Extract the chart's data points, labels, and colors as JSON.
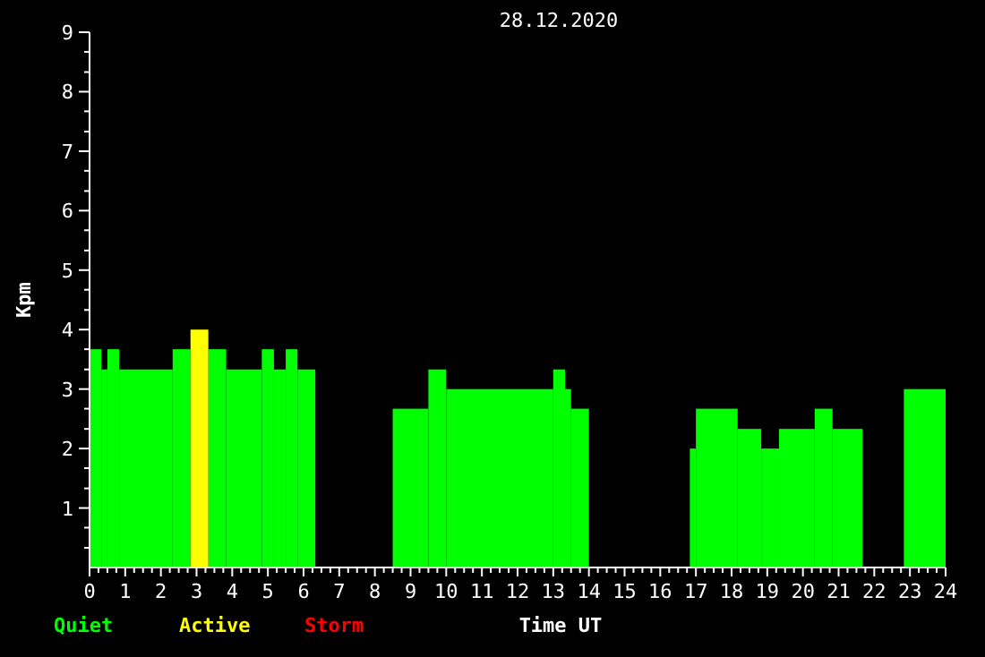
{
  "chart_data": {
    "type": "histogram",
    "title": "28.12.2020",
    "xlabel": "Time UT",
    "ylabel": "Kpm",
    "bins": [
      0,
      0.33,
      0.5,
      0.83,
      2.33,
      2.83,
      3.33,
      3.83,
      4.83,
      5.17,
      5.5,
      5.83,
      6.33,
      8.5,
      9.5,
      10,
      13,
      13.33,
      13.5,
      14,
      16.83,
      17,
      18.17,
      18.83,
      19.33,
      20.33,
      20.83,
      21.67,
      22.83,
      24
    ],
    "series": [
      {
        "name": "Quiet",
        "color": "#00ff00",
        "values": [
          3.67,
          3.33,
          3.67,
          3.33,
          3.67,
          null,
          3.67,
          3.33,
          3.67,
          3.33,
          3.67,
          3.33,
          null,
          2.67,
          3.33,
          3,
          3.33,
          3,
          2.67,
          null,
          2,
          2.67,
          2.33,
          2,
          2.33,
          2.67,
          2.33,
          null,
          3
        ]
      },
      {
        "name": "Active",
        "color": "#ffff00",
        "values": [
          null,
          null,
          null,
          null,
          null,
          4,
          null,
          null,
          null,
          null,
          null,
          null,
          null,
          null,
          null,
          null,
          null,
          null,
          null,
          null,
          null,
          null,
          null,
          null,
          null,
          null,
          null,
          null,
          null
        ]
      }
    ],
    "annotations": [
      "Storm"
    ],
    "xlim": [
      0,
      24
    ],
    "ylim": [
      0,
      9
    ],
    "xticks": [
      0,
      {
        "value": 0.25,
        "label": null
      },
      {
        "value": 0.5,
        "label": null
      },
      {
        "value": 0.75,
        "label": null
      },
      1,
      {
        "value": 1.25,
        "label": null
      },
      {
        "value": 1.5,
        "label": null
      },
      {
        "value": 1.75,
        "label": null
      },
      2,
      {
        "value": 2.25,
        "label": null
      },
      {
        "value": 2.5,
        "label": null
      },
      {
        "value": 2.75,
        "label": null
      },
      3,
      {
        "value": 3.25,
        "label": null
      },
      {
        "value": 3.5,
        "label": null
      },
      {
        "value": 3.75,
        "label": null
      },
      4,
      {
        "value": 4.25,
        "label": null
      },
      {
        "value": 4.5,
        "label": null
      },
      {
        "value": 4.75,
        "label": null
      },
      5,
      {
        "value": 5.25,
        "label": null
      },
      {
        "value": 5.5,
        "label": null
      },
      {
        "value": 5.75,
        "label": null
      },
      6,
      {
        "value": 6.25,
        "label": null
      },
      {
        "value": 6.5,
        "label": null
      },
      {
        "value": 6.75,
        "label": null
      },
      7,
      {
        "value": 7.25,
        "label": null
      },
      {
        "value": 7.5,
        "label": null
      },
      {
        "value": 7.75,
        "label": null
      },
      8,
      {
        "value": 8.25,
        "label": null
      },
      {
        "value": 8.5,
        "label": null
      },
      {
        "value": 8.75,
        "label": null
      },
      9,
      {
        "value": 9.25,
        "label": null
      },
      {
        "value": 9.5,
        "label": null
      },
      {
        "value": 9.75,
        "label": null
      },
      10,
      {
        "value": 10.25,
        "label": null
      },
      {
        "value": 10.5,
        "label": null
      },
      {
        "value": 10.75,
        "label": null
      },
      11,
      {
        "value": 11.25,
        "label": null
      },
      {
        "value": 11.5,
        "label": null
      },
      {
        "value": 11.75,
        "label": null
      },
      12,
      {
        "value": 12.25,
        "label": null
      },
      {
        "value": 12.5,
        "label": null
      },
      {
        "value": 12.75,
        "label": null
      },
      13,
      {
        "value": 13.25,
        "label": null
      },
      {
        "value": 13.5,
        "label": null
      },
      {
        "value": 13.75,
        "label": null
      },
      14,
      {
        "value": 14.25,
        "label": null
      },
      {
        "value": 14.5,
        "label": null
      },
      {
        "value": 14.75,
        "label": null
      },
      15,
      {
        "value": 15.25,
        "label": null
      },
      {
        "value": 15.5,
        "label": null
      },
      {
        "value": 15.75,
        "label": null
      },
      16,
      {
        "value": 16.25,
        "label": null
      },
      {
        "value": 16.5,
        "label": null
      },
      {
        "value": 16.75,
        "label": null
      },
      17,
      {
        "value": 17.25,
        "label": null
      },
      {
        "value": 17.5,
        "label": null
      },
      {
        "value": 17.75,
        "label": null
      },
      18,
      {
        "value": 18.25,
        "label": null
      },
      {
        "value": 18.5,
        "label": null
      },
      {
        "value": 18.75,
        "label": null
      },
      19,
      {
        "value": 19.25,
        "label": null
      },
      {
        "value": 19.5,
        "label": null
      },
      {
        "value": 19.75,
        "label": null
      },
      20,
      {
        "value": 20.25,
        "label": null
      },
      {
        "value": 20.5,
        "label": null
      },
      {
        "value": 20.75,
        "label": null
      },
      21,
      {
        "value": 21.25,
        "label": null
      },
      {
        "value": 21.5,
        "label": null
      },
      {
        "value": 21.75,
        "label": null
      },
      22,
      {
        "value": 22.25,
        "label": null
      },
      {
        "value": 22.5,
        "label": null
      },
      {
        "value": 22.75,
        "label": null
      },
      23,
      {
        "value": 23.25,
        "label": null
      },
      {
        "value": 23.5,
        "label": null
      },
      {
        "value": 23.75,
        "label": null
      },
      24
    ],
    "yticks": [
      {
        "value": 0.33,
        "label": null
      },
      {
        "value": 0.67,
        "label": null
      },
      1,
      {
        "value": 1.33,
        "label": null
      },
      {
        "value": 1.67,
        "label": null
      },
      2,
      {
        "value": 2.33,
        "label": null
      },
      {
        "value": 2.67,
        "label": null
      },
      3,
      {
        "value": 3.33,
        "label": null
      },
      {
        "value": 3.67,
        "label": null
      },
      4,
      {
        "value": 4.33,
        "label": null
      },
      {
        "value": 4.67,
        "label": null
      },
      5,
      {
        "value": 5.33,
        "label": null
      },
      {
        "value": 5.67,
        "label": null
      },
      6,
      {
        "value": 6.33,
        "label": null
      },
      {
        "value": 6.67,
        "label": null
      },
      7,
      {
        "value": 7.33,
        "label": null
      },
      {
        "value": 7.67,
        "label": null
      },
      8,
      {
        "value": 8.33,
        "label": null
      },
      {
        "value": 8.67,
        "label": null
      },
      9
    ],
    "legend": "bottom left",
    "grid": false
  }
}
